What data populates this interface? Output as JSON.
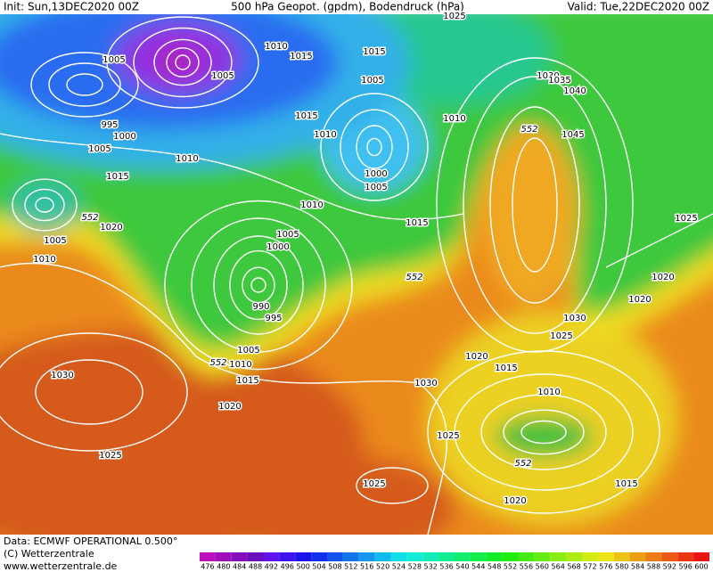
{
  "header": {
    "init": "Init: Sun,13DEC2020 00Z",
    "title": "500 hPa Geopot. (gpdm), Bodendruck (hPa)",
    "valid": "Valid: Tue,22DEC2020 00Z"
  },
  "isobar_labels": [
    "1010",
    "1015",
    "1015",
    "1005",
    "1005",
    "1005",
    "1025",
    "1030",
    "1035",
    "1040",
    "995",
    "1000",
    "1005",
    "1010",
    "1015",
    "1010",
    "1010",
    "1045",
    "1000",
    "1005",
    "1015",
    "1010",
    "1005",
    "1000",
    "1020",
    "1005",
    "1010",
    "1015",
    "1025",
    "990",
    "995",
    "1020",
    "1020",
    "1030",
    "1025",
    "1005",
    "1010",
    "1015",
    "1020",
    "1015",
    "1030",
    "1030",
    "1020",
    "1010",
    "1025",
    "1025",
    "1015",
    "1025",
    "1020"
  ],
  "height_labels": [
    "552",
    "552",
    "552",
    "552",
    "552"
  ],
  "footer": {
    "data": "Data: ECMWF OPERATIONAL 0.500°",
    "copyright": "(C) Wetterzentrale",
    "url": "www.wetterzentrale.de"
  },
  "colorbar": {
    "labels": [
      "476",
      "480",
      "484",
      "488",
      "492",
      "496",
      "500",
      "504",
      "508",
      "512",
      "516",
      "520",
      "524",
      "528",
      "532",
      "536",
      "540",
      "544",
      "548",
      "552",
      "556",
      "560",
      "564",
      "568",
      "572",
      "576",
      "580",
      "584",
      "588",
      "592",
      "596",
      "600"
    ]
  }
}
